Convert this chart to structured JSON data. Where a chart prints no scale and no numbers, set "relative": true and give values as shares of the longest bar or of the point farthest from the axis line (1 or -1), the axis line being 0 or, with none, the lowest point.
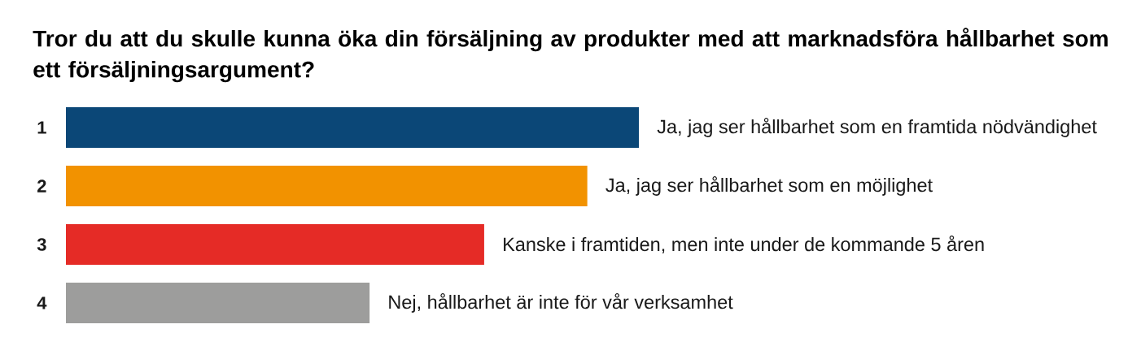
{
  "chart_data": {
    "type": "bar",
    "orientation": "horizontal",
    "relative": true,
    "title": "Tror du att du skulle kunna öka din försäljning av produkter med att marknadsföra hållbarhet som ett försäljningsargument?",
    "categories": [
      "1",
      "2",
      "3",
      "4"
    ],
    "values": [
      1,
      0.91,
      0.73,
      0.53
    ],
    "colors": [
      "#0b4777",
      "#f29200",
      "#e52b26",
      "#9d9d9c"
    ],
    "annotations": [
      {
        "text": "Ja, jag ser hållbarhet som en framtida nödvändighet",
        "x": 1,
        "y": "1"
      },
      {
        "text": "Ja, jag ser hållbarhet som en möjlighet",
        "x": 0.91,
        "y": "2"
      },
      {
        "text": "Kanske i framtiden, men inte under de kommande 5 åren",
        "x": 0.73,
        "y": "3"
      },
      {
        "text": "Nej, hållbarhet är inte för vår verksamhet",
        "x": 0.53,
        "y": "4"
      }
    ]
  }
}
